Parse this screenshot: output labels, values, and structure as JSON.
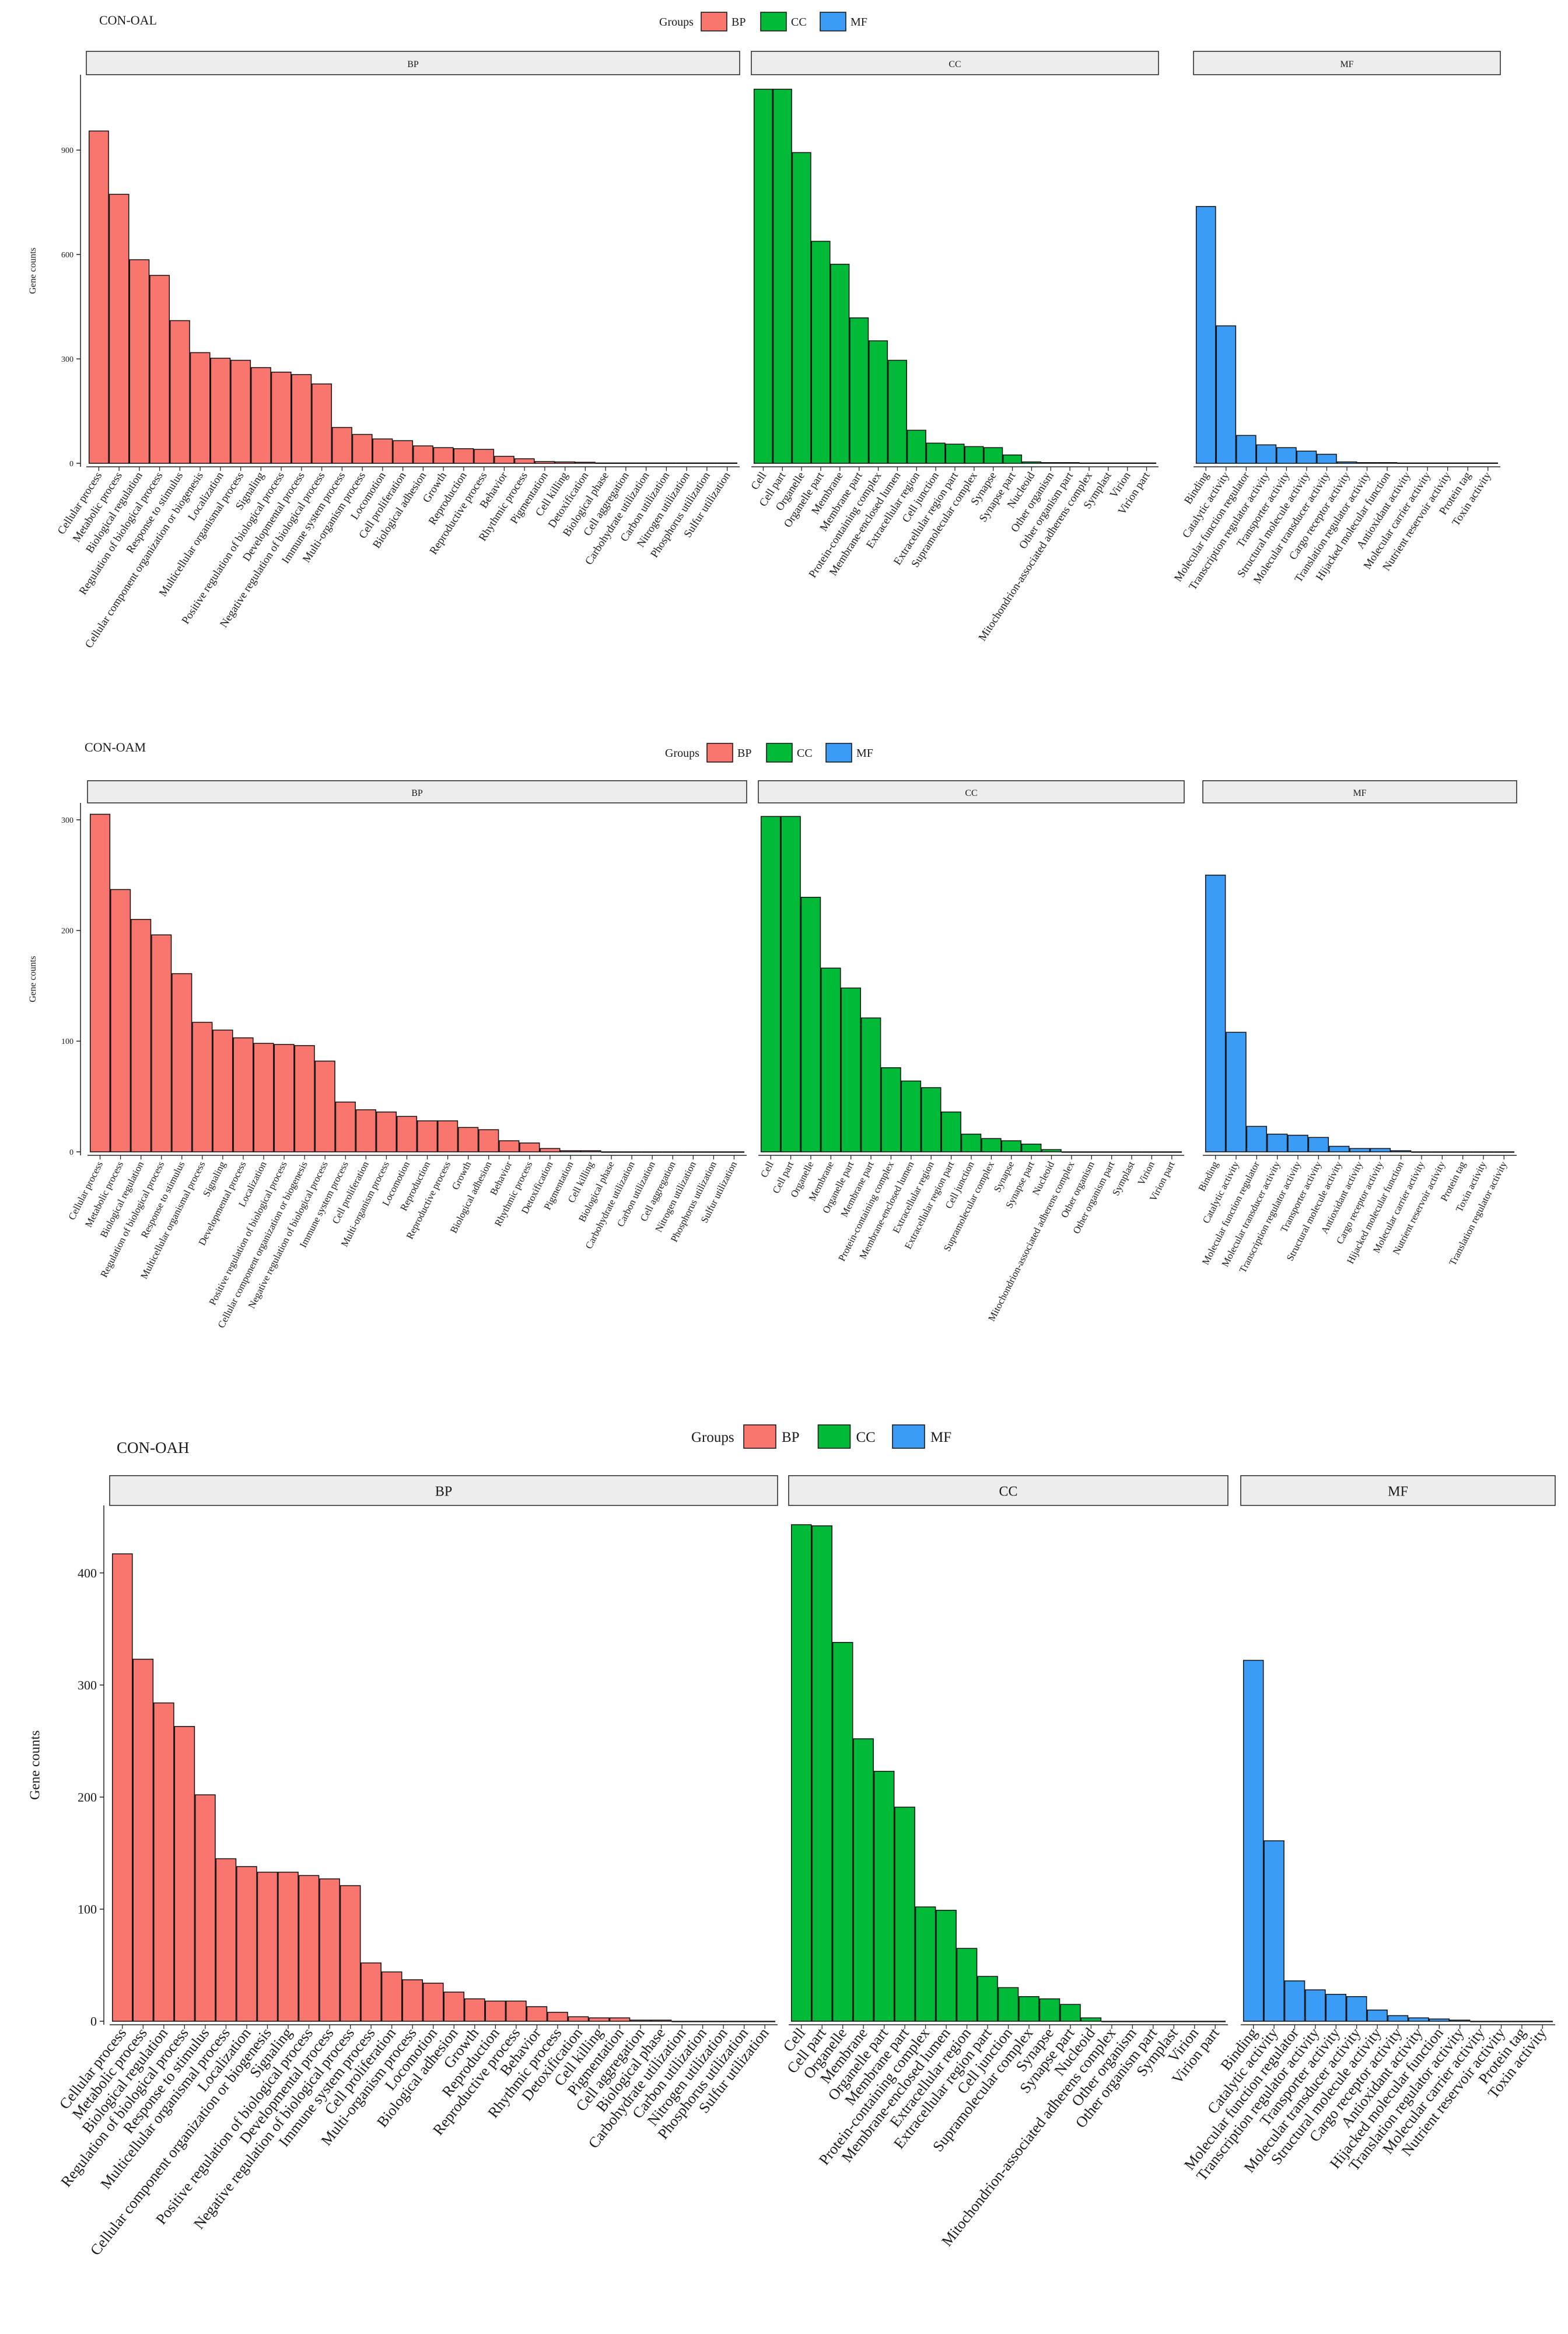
{
  "colors": {
    "BP": "#f8766d",
    "CC": "#00ba38",
    "MF": "#3b9cf5",
    "strip_fill": "#ededed",
    "bar_outline": "#111111"
  },
  "chart_data": [
    {
      "type": "bar",
      "title": "CON-OAL",
      "ylabel": "Gene counts",
      "legend": {
        "title": "Groups",
        "items": [
          "BP",
          "CC",
          "MF"
        ]
      },
      "ylim": [
        0,
        1100
      ],
      "yticks": [
        0,
        300,
        600,
        900
      ],
      "panels": [
        {
          "group": "BP",
          "categories": [
            "Cellular process",
            "Metabolic process",
            "Biological regulation",
            "Regulation of biological process",
            "Response to stimulus",
            "Cellular component organization or biogenesis",
            "Localization",
            "Multicellular organismal process",
            "Signaling",
            "Positive regulation of biological process",
            "Developmental process",
            "Negative regulation of biological process",
            "Immune system process",
            "Multi-organism process",
            "Locomotion",
            "Cell proliferation",
            "Biological adhesion",
            "Growth",
            "Reproduction",
            "Reproductive process",
            "Behavior",
            "Rhythmic process",
            "Pigmentation",
            "Cell killing",
            "Detoxification",
            "Biological phase",
            "Cell aggregation",
            "Carbohydrate utilization",
            "Carbon utilization",
            "Nitrogen utilization",
            "Phosphorus utilization",
            "Sulfur utilization"
          ],
          "values": [
            955,
            773,
            585,
            540,
            410,
            318,
            302,
            296,
            275,
            262,
            255,
            228,
            103,
            83,
            70,
            65,
            50,
            45,
            42,
            40,
            20,
            13,
            5,
            4,
            3,
            1,
            1,
            1,
            1,
            1,
            1,
            1
          ]
        },
        {
          "group": "CC",
          "categories": [
            "Cell",
            "Cell part",
            "Organelle",
            "Organelle part",
            "Membrane",
            "Membrane part",
            "Protein-containing complex",
            "Membrane-enclosed lumen",
            "Extracellular region",
            "Cell junction",
            "Extracellular region part",
            "Supramolecular complex",
            "Synapse",
            "Synapse part",
            "Nucleoid",
            "Other organism",
            "Other organism part",
            "Mitochondrion-associated adherens complex",
            "Symplast",
            "Virion",
            "Virion part"
          ],
          "values": [
            1075,
            1075,
            893,
            638,
            572,
            418,
            352,
            296,
            95,
            58,
            55,
            48,
            45,
            24,
            4,
            2,
            2,
            1,
            1,
            1,
            1
          ]
        },
        {
          "group": "MF",
          "categories": [
            "Binding",
            "Catalytic activity",
            "Molecular function regulator",
            "Transcription regulator activity",
            "Transporter activity",
            "Structural molecule activity",
            "Molecular transducer activity",
            "Cargo receptor activity",
            "Translation regulator activity",
            "Hijacked molecular function",
            "Antioxidant activity",
            "Molecular carrier activity",
            "Nutrient reservoir activity",
            "Protein tag",
            "Toxin activity"
          ],
          "values": [
            738,
            395,
            80,
            53,
            45,
            35,
            26,
            4,
            2,
            2,
            1,
            1,
            1,
            1,
            1
          ]
        }
      ]
    },
    {
      "type": "bar",
      "title": "CON-OAM",
      "ylabel": "Gene counts",
      "legend": {
        "title": "Groups",
        "items": [
          "BP",
          "CC",
          "MF"
        ]
      },
      "ylim": [
        0,
        310
      ],
      "yticks": [
        0,
        100,
        200,
        300
      ],
      "panels": [
        {
          "group": "BP",
          "categories": [
            "Cellular process",
            "Metabolic process",
            "Biological regulation",
            "Regulation of biological process",
            "Response to stimulus",
            "Multicellular organismal process",
            "Signaling",
            "Developmental process",
            "Localization",
            "Positive regulation of biological process",
            "Cellular component organization or biogenesis",
            "Negative regulation of biological process",
            "Immune system process",
            "Cell proliferation",
            "Multi-organism process",
            "Locomotion",
            "Reproduction",
            "Reproductive process",
            "Growth",
            "Biological adhesion",
            "Behavior",
            "Rhythmic process",
            "Detoxification",
            "Pigmentation",
            "Cell killing",
            "Biological phase",
            "Carbohydrate utilization",
            "Carbon utilization",
            "Cell aggregation",
            "Nitrogen utilization",
            "Phosphorus utilization",
            "Sulfur utilization"
          ],
          "values": [
            305,
            237,
            210,
            196,
            161,
            117,
            110,
            103,
            98,
            97,
            96,
            82,
            45,
            38,
            36,
            32,
            28,
            28,
            22,
            20,
            10,
            8,
            3,
            1,
            1,
            0,
            0,
            0,
            0,
            0,
            0,
            0
          ]
        },
        {
          "group": "CC",
          "categories": [
            "Cell",
            "Cell part",
            "Organelle",
            "Membrane",
            "Organelle part",
            "Membrane part",
            "Protein-containing complex",
            "Membrane-enclosed lumen",
            "Extracellular region",
            "Extracellular region part",
            "Cell junction",
            "Supramolecular complex",
            "Synapse",
            "Synapse part",
            "Nucleoid",
            "Mitochondrion-associated adherens complex",
            "Other organism",
            "Other organism part",
            "Symplast",
            "Virion",
            "Virion part"
          ],
          "values": [
            303,
            303,
            230,
            166,
            148,
            121,
            76,
            64,
            58,
            36,
            16,
            12,
            10,
            7,
            2,
            0,
            0,
            0,
            0,
            0,
            0
          ]
        },
        {
          "group": "MF",
          "categories": [
            "Binding",
            "Catalytic activity",
            "Molecular function regulator",
            "Molecular transducer activity",
            "Transcription regulator activity",
            "Transporter activity",
            "Structural molecule activity",
            "Antioxidant activity",
            "Cargo receptor activity",
            "Hijacked molecular function",
            "Molecular carrier activity",
            "Nutrient reservoir activity",
            "Protein tag",
            "Toxin activity",
            "Translation regulator activity"
          ],
          "values": [
            250,
            108,
            23,
            16,
            15,
            13,
            5,
            3,
            3,
            1,
            0,
            0,
            0,
            0,
            0
          ]
        }
      ]
    },
    {
      "type": "bar",
      "title": "CON-OAH",
      "ylabel": "Gene counts",
      "legend": {
        "title": "Groups",
        "items": [
          "BP",
          "CC",
          "MF"
        ]
      },
      "ylim": [
        0,
        455
      ],
      "yticks": [
        0,
        100,
        200,
        300,
        400
      ],
      "panels": [
        {
          "group": "BP",
          "categories": [
            "Cellular process",
            "Metabolic process",
            "Biological regulation",
            "Regulation of biological process",
            "Response to stimulus",
            "Multicellular organismal process",
            "Localization",
            "Cellular component organization or biogenesis",
            "Signaling",
            "Positive regulation of biological process",
            "Developmental process",
            "Negative regulation of biological process",
            "Immune system process",
            "Cell proliferation",
            "Multi-organism process",
            "Locomotion",
            "Biological adhesion",
            "Growth",
            "Reproduction",
            "Reproductive process",
            "Behavior",
            "Rhythmic process",
            "Detoxification",
            "Cell killing",
            "Pigmentation",
            "Cell aggregation",
            "Biological phase",
            "Carbohydrate utilization",
            "Carbon utilization",
            "Nitrogen utilization",
            "Phosphorus utilization",
            "Sulfur utilization"
          ],
          "values": [
            417,
            323,
            284,
            263,
            202,
            145,
            138,
            133,
            133,
            130,
            127,
            121,
            52,
            44,
            37,
            34,
            26,
            20,
            18,
            18,
            13,
            8,
            4,
            3,
            3,
            1,
            1,
            0,
            0,
            0,
            0,
            0
          ]
        },
        {
          "group": "CC",
          "categories": [
            "Cell",
            "Cell part",
            "Organelle",
            "Membrane",
            "Organelle part",
            "Membrane part",
            "Protein-containing complex",
            "Membrane-enclosed lumen",
            "Extracellular region",
            "Extracellular region part",
            "Cell junction",
            "Supramolecular complex",
            "Synapse",
            "Synapse part",
            "Nucleoid",
            "Mitochondrion-associated adherens complex",
            "Other organism",
            "Other organism part",
            "Symplast",
            "Virion",
            "Virion part"
          ],
          "values": [
            443,
            442,
            338,
            252,
            223,
            191,
            102,
            99,
            65,
            40,
            30,
            22,
            20,
            15,
            3,
            0,
            0,
            0,
            0,
            0,
            0
          ]
        },
        {
          "group": "MF",
          "categories": [
            "Binding",
            "Catalytic activity",
            "Molecular function regulator",
            "Transcription regulator activity",
            "Transporter activity",
            "Molecular transducer activity",
            "Structural molecule activity",
            "Cargo receptor activity",
            "Antioxidant activity",
            "Hijacked molecular function",
            "Translation regulator activity",
            "Molecular carrier activity",
            "Nutrient reservoir activity",
            "Protein tag",
            "Toxin activity"
          ],
          "values": [
            322,
            161,
            36,
            28,
            24,
            22,
            10,
            5,
            3,
            2,
            1,
            0,
            0,
            0,
            0
          ]
        }
      ]
    }
  ]
}
